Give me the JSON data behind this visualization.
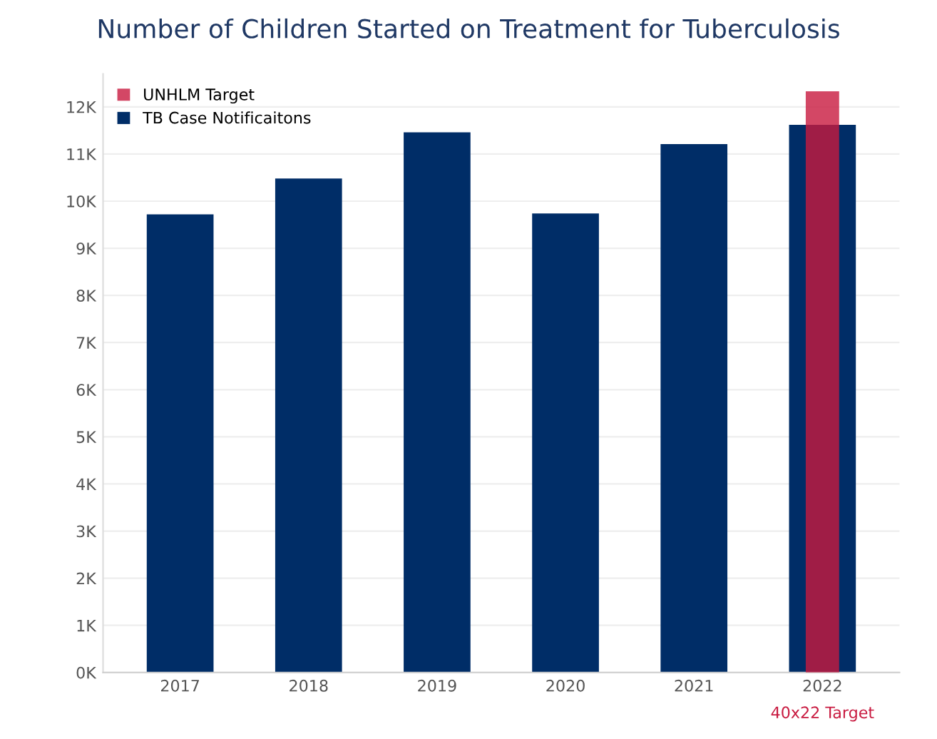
{
  "chart_data": {
    "type": "bar",
    "title": "Number of Children Started on Treatment for Tuberculosis",
    "categories": [
      "2017",
      "2018",
      "2019",
      "2020",
      "2021",
      "2022"
    ],
    "series": [
      {
        "name": "TB Case Notificaitons",
        "color": "#002d67",
        "values": [
          9720,
          10480,
          11460,
          9740,
          11210,
          11620
        ]
      },
      {
        "name": "UNHLM Target",
        "color": "#c8193f",
        "values": [
          null,
          null,
          null,
          null,
          null,
          12330
        ]
      }
    ],
    "ylim": [
      0,
      12700
    ],
    "yticks": [
      {
        "value": 0,
        "label": "0K"
      },
      {
        "value": 1000,
        "label": "1K"
      },
      {
        "value": 2000,
        "label": "2K"
      },
      {
        "value": 3000,
        "label": "3K"
      },
      {
        "value": 4000,
        "label": "4K"
      },
      {
        "value": 5000,
        "label": "5K"
      },
      {
        "value": 6000,
        "label": "6K"
      },
      {
        "value": 7000,
        "label": "7K"
      },
      {
        "value": 8000,
        "label": "8K"
      },
      {
        "value": 9000,
        "label": "9K"
      },
      {
        "value": 10000,
        "label": "10K"
      },
      {
        "value": 11000,
        "label": "11K"
      },
      {
        "value": 12000,
        "label": "12K"
      }
    ],
    "grid": "y",
    "legend": "top left",
    "annotations": [
      "40x22 Target"
    ]
  }
}
